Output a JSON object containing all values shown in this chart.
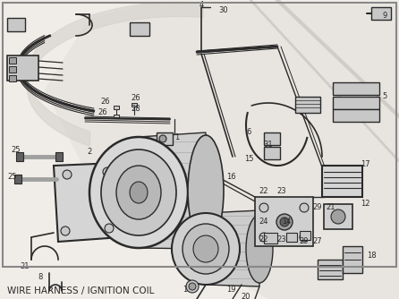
{
  "caption": "WIRE HARNESS / IGNITION COIL",
  "bg_color": "#f0ede8",
  "border_color": "#999999",
  "fig_width": 4.46,
  "fig_height": 3.34,
  "dpi": 100,
  "caption_fontsize": 7.5,
  "diagram_color": "#2a2a2a",
  "light_gray": "#c8c8c8",
  "mid_gray": "#a0a0a0",
  "dark_gray": "#606060"
}
